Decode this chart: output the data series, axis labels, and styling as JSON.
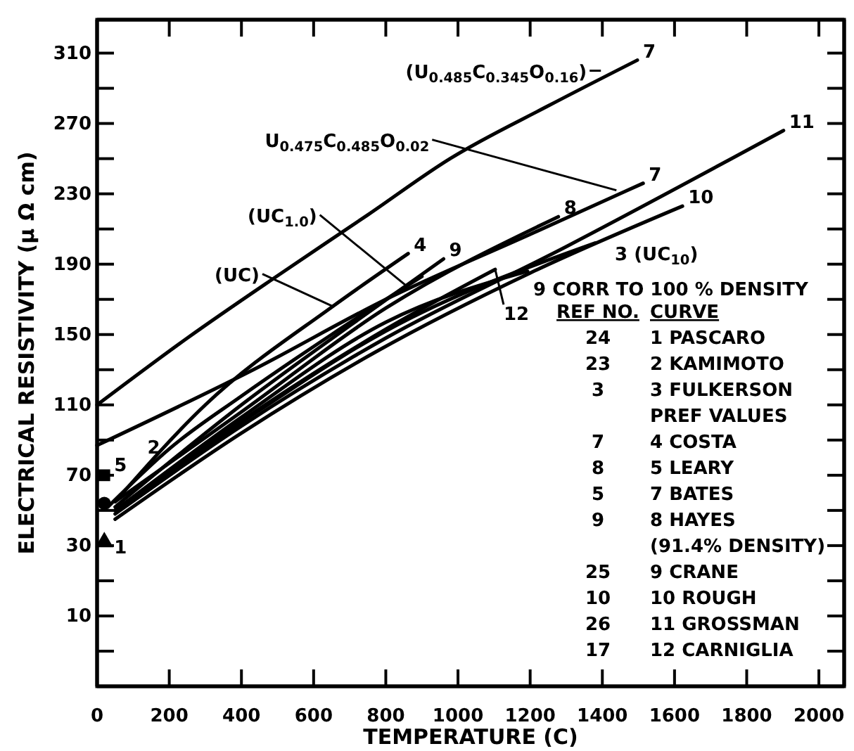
{
  "chart_data": {
    "type": "line",
    "xlabel": "TEMPERATURE (C)",
    "ylabel": "ELECTRICAL RESISTIVITY (μ Ω cm)",
    "xlim": [
      0,
      2070
    ],
    "ylim": [
      -50,
      329
    ],
    "xticks": [
      0,
      200,
      400,
      600,
      800,
      1000,
      1200,
      1400,
      1600,
      1800,
      2000
    ],
    "yticks": [
      310,
      {
        "value": 290,
        "label": null
      },
      270,
      {
        "value": 250,
        "label": null
      },
      230,
      {
        "value": 210,
        "label": null
      },
      190,
      {
        "value": 170,
        "label": null
      },
      150,
      {
        "value": 130,
        "label": null
      },
      110,
      {
        "value": 90,
        "label": null
      },
      70,
      {
        "value": 50,
        "label": null
      },
      30,
      {
        "value": 10,
        "label": null
      },
      {
        "value": -10,
        "label": "10"
      },
      {
        "value": -30,
        "label": null
      }
    ],
    "grid": false,
    "legend": "right",
    "line_style": "solid",
    "series": [
      {
        "name": "7",
        "color": "#000000",
        "x": [
          0,
          250,
          504,
          750,
          978,
          1250,
          1497
        ],
        "values": [
          110,
          148,
          184,
          218,
          250,
          280,
          306
        ]
      },
      {
        "name": "7",
        "color": "#000000",
        "x": [
          0,
          433,
          800,
          1200,
          1513
        ],
        "values": [
          87,
          130,
          170,
          207,
          236
        ]
      },
      {
        "name": "11",
        "color": "#000000",
        "x": [
          50,
          400,
          800,
          1300,
          1902
        ],
        "values": [
          48,
          98,
          148,
          200,
          266
        ]
      },
      {
        "name": "10",
        "color": "#000000",
        "x": [
          50,
          400,
          771,
          1200,
          1622
        ],
        "values": [
          45,
          94,
          140,
          185,
          223
        ]
      },
      {
        "name": "3 (UC$_{10}$)",
        "color": "#000000",
        "x": [
          50,
          400,
          800,
          1380
        ],
        "values": [
          50,
          100,
          152,
          202
        ]
      },
      {
        "name": "9",
        "color": "#000000",
        "x": [
          50,
          400,
          700,
          960
        ],
        "values": [
          52,
          110,
          155,
          193
        ]
      },
      {
        "name": "12",
        "color": "#000000",
        "x": [
          50,
          400,
          800,
          1103
        ],
        "values": [
          50,
          101,
          153,
          187
        ]
      },
      {
        "name": "9 CORR TO 100 % DENSITY",
        "color": "#000000",
        "x": [
          50,
          400,
          800,
          1193
        ],
        "values": [
          50,
          103,
          157,
          186
        ]
      },
      {
        "name": "8",
        "color": "#000000",
        "x": [
          50,
          400,
          800,
          1278
        ],
        "values": [
          55,
          106,
          165,
          217
        ]
      },
      {
        "name": "2",
        "color": "#000000",
        "x": [
          30,
          200,
          400,
          650,
          900
        ],
        "values": [
          52,
          85,
          115,
          150,
          183
        ]
      },
      {
        "name": "4",
        "color": "#000000",
        "x": [
          50,
          300,
          653,
          862
        ],
        "values": [
          55,
          110,
          166,
          196
        ]
      },
      {
        "name": "1",
        "type": "scatter",
        "marker": "triangle",
        "color": "#000000",
        "x": [
          20
        ],
        "values": [
          32
        ]
      },
      {
        "name": "5",
        "type": "scatter",
        "marker": "square",
        "color": "#000000",
        "x": [
          20
        ],
        "values": [
          70
        ]
      },
      {
        "type": "scatter",
        "marker": "circle",
        "color": "#000000",
        "x": [
          20
        ],
        "values": [
          54
        ]
      }
    ],
    "annotations": [
      "REF NO.",
      "CURVE",
      "24",
      "1 PASCARO",
      "23",
      "2 KAMIMOTO",
      "3",
      "3 FULKERSON",
      "PREF VALUES",
      "7",
      "4 COSTA",
      "8",
      "5 LEARY",
      "5",
      "7 BATES",
      "9",
      "8 HAYES",
      "(91.4% DENSITY)",
      "25",
      "9 CRANE",
      "10",
      "10 ROUGH",
      "26",
      "11 GROSSMAN",
      "17",
      "12 CARNIGLIA",
      {
        "text": "(U$_{0.485}$C$_{0.345}$O$_{0.16}$)",
        "x": 1396,
        "y": 300
      },
      {
        "text": "U$_{0.475}$C$_{0.485}$O$_{0.02}$",
        "x": 1439,
        "y": 232
      },
      {
        "text": "(UC$_{1.0}$)",
        "x": 855,
        "y": 178
      },
      {
        "text": "(UC)",
        "x": 653,
        "y": 166
      }
    ]
  }
}
